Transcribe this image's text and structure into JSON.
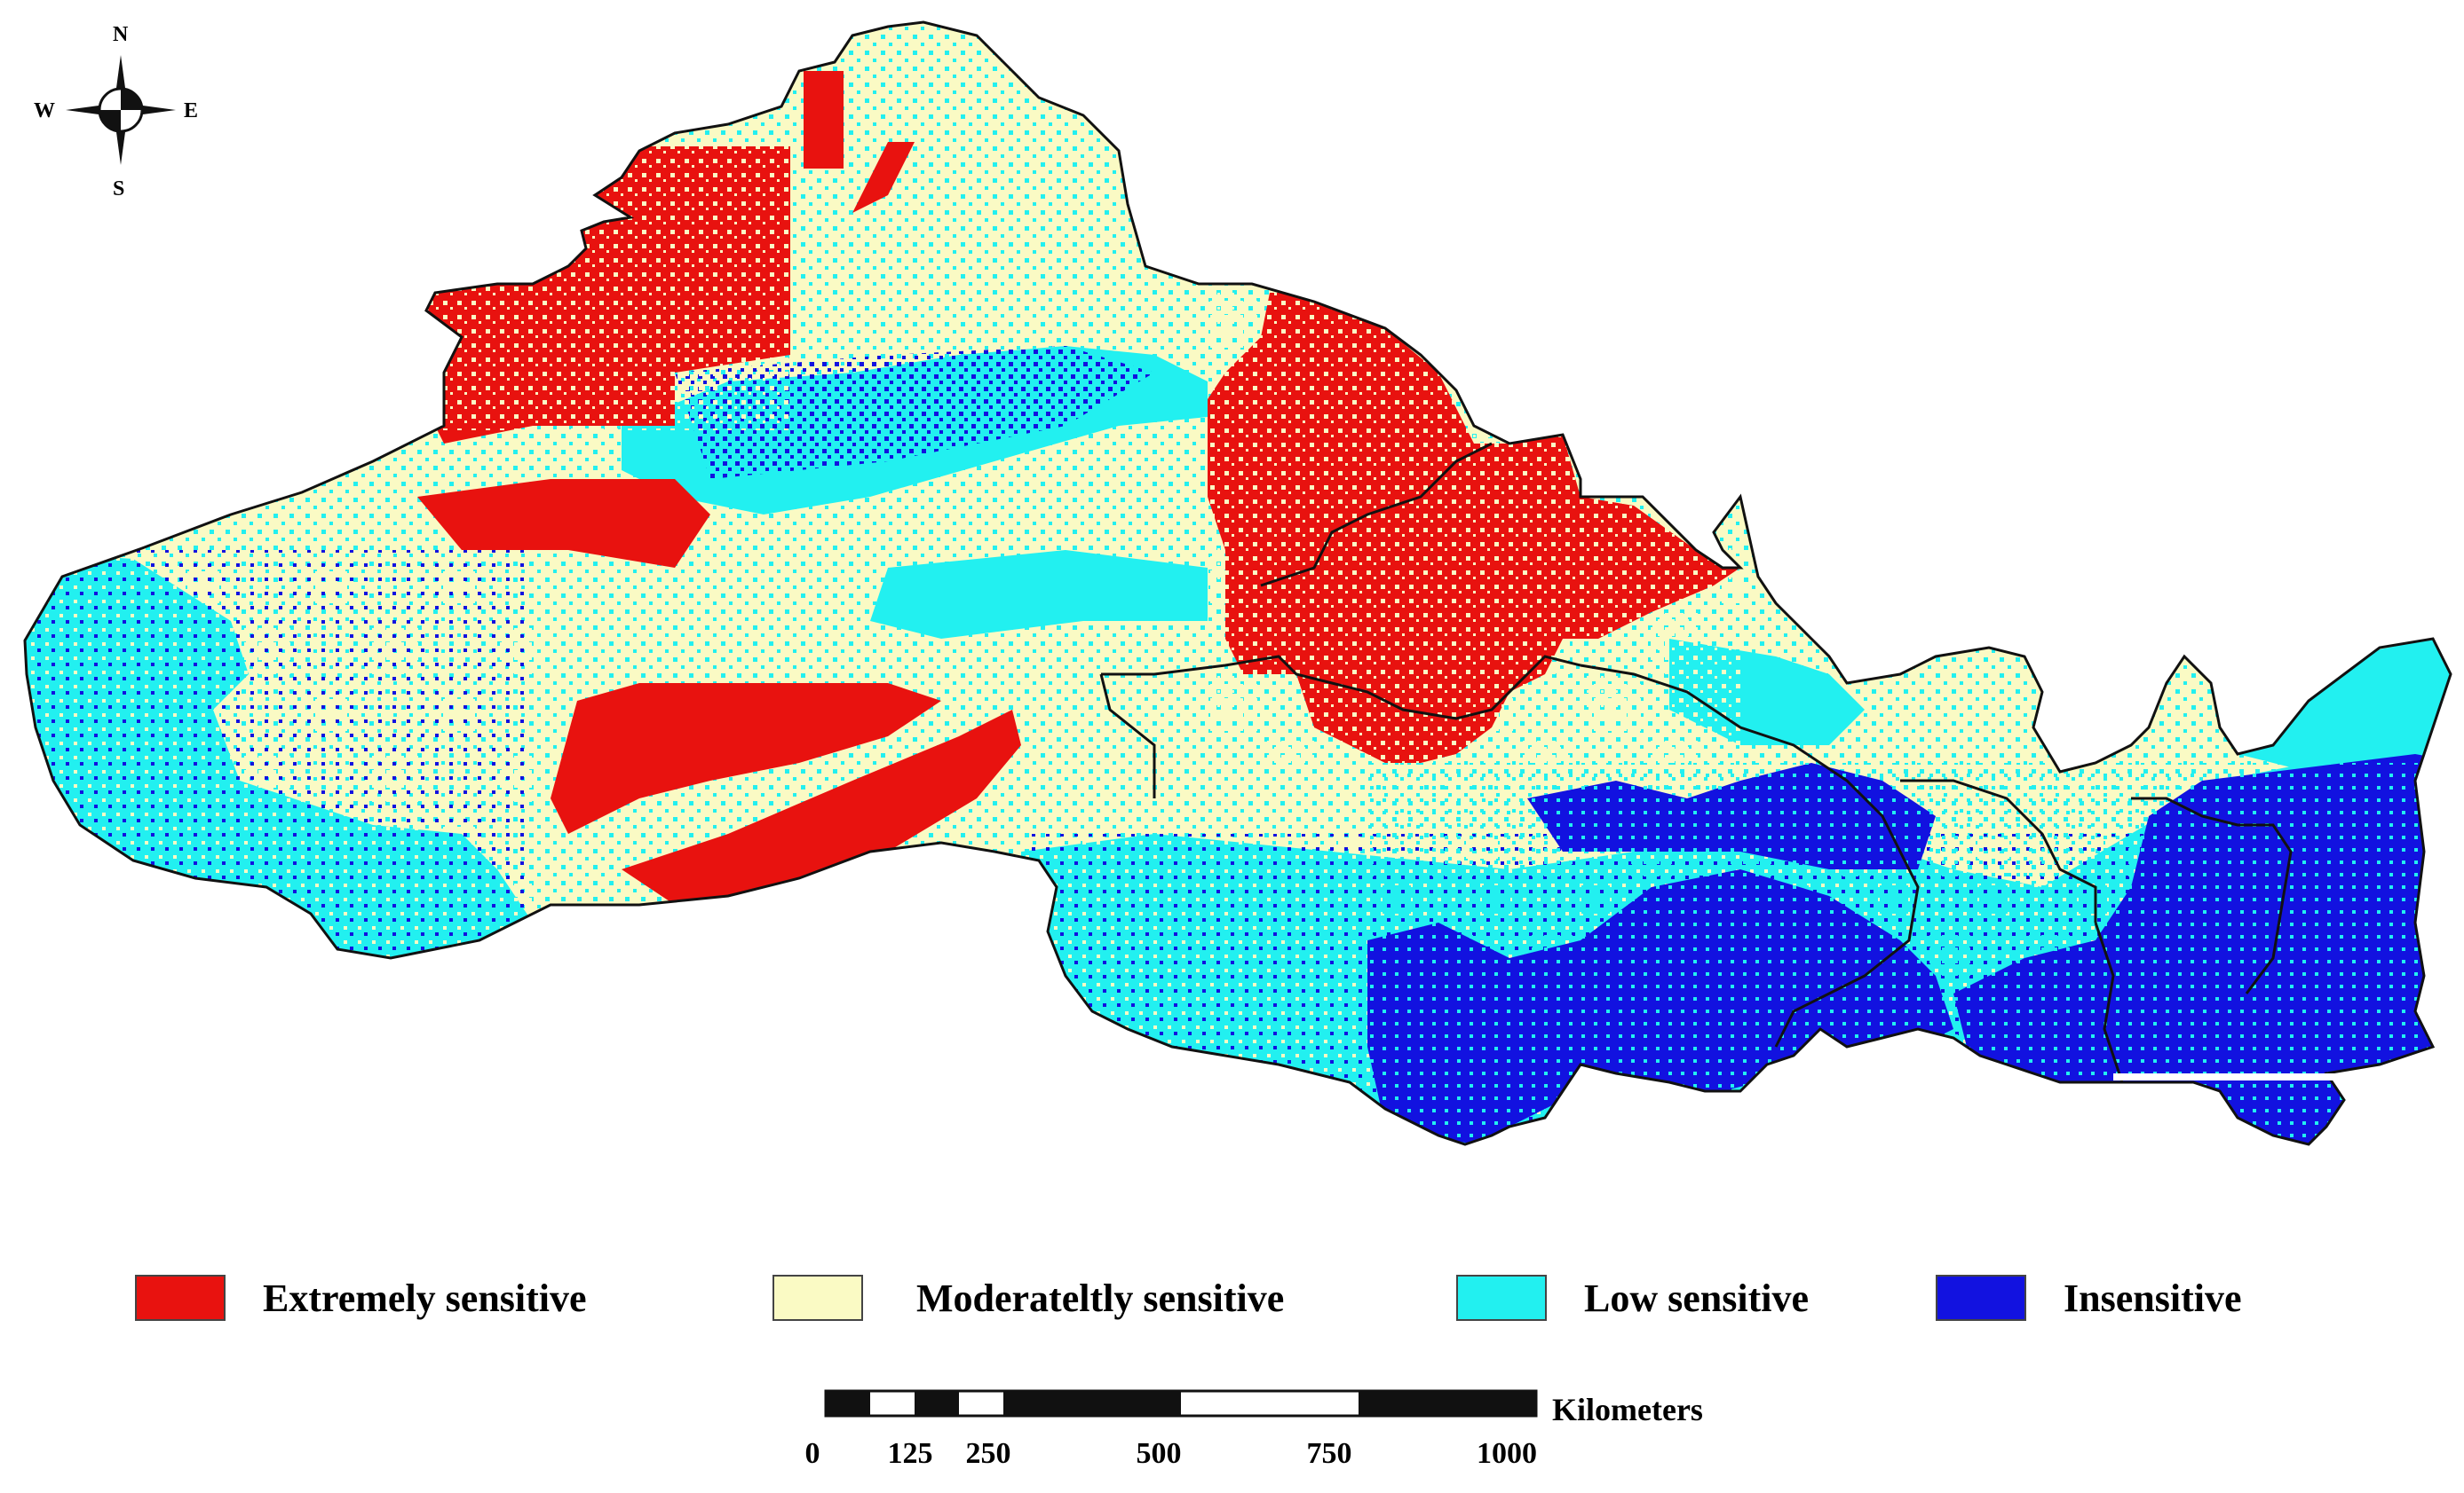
{
  "compass": {
    "north": "N",
    "south": "S",
    "east": "E",
    "west": "W"
  },
  "colors": {
    "extremely": "#e8120f",
    "moderately": "#fafac4",
    "low": "#22f0f0",
    "insensitive": "#1212e0",
    "boundary": "#111111"
  },
  "legend": [
    {
      "label": "Extremely sensitive",
      "color": "#e8120f"
    },
    {
      "label": "Moderateltly sensitive",
      "color": "#fafac4"
    },
    {
      "label": "Low sensitive",
      "color": "#22f0f0"
    },
    {
      "label": "Insensitive",
      "color": "#1212e0"
    }
  ],
  "scale_bar": {
    "unit": "Kilometers",
    "ticks": [
      "0",
      "125",
      "250",
      "500",
      "750",
      "1000"
    ]
  }
}
